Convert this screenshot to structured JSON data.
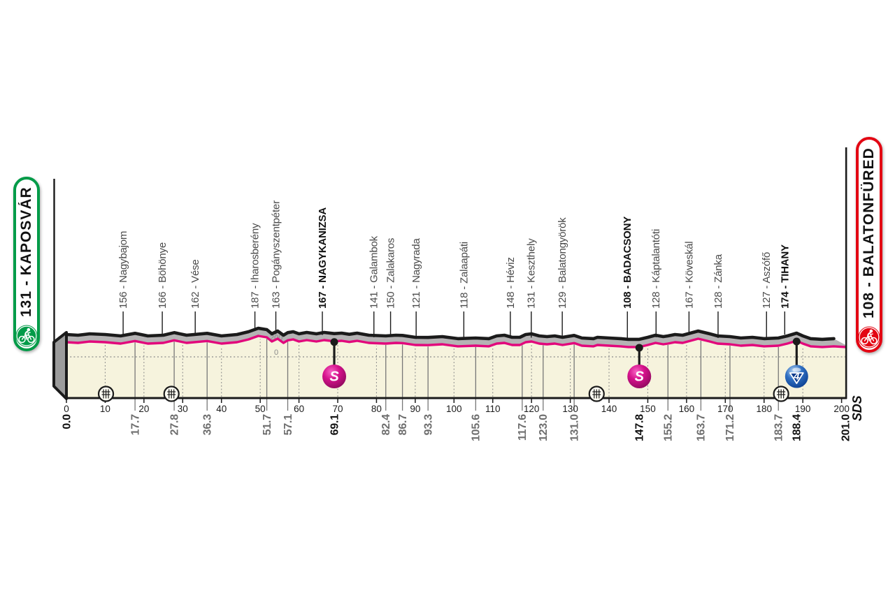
{
  "start_badge": {
    "label": "131 - KAPOSVÁR",
    "color": "#009b48"
  },
  "finish_badge": {
    "label": "108 - BALATONFÜRED",
    "color": "#e30613"
  },
  "credit": "SDS",
  "colors": {
    "profile_line": "#e2077c",
    "road_band": "#b5b3b4",
    "outline": "#1b1b1b",
    "area_fill": "#f6f3dd",
    "guide_gray": "#8a8a8a",
    "waypoint_label_gray": "#4a4a4a",
    "km_label_gray": "#6e6e6e",
    "sprint_ball": "#cc0e7e",
    "climb_ball": "#2f6fc2",
    "climb_triangle": "#0a3a8c"
  },
  "chart_data": {
    "type": "area",
    "title": "",
    "x_axis": {
      "unit": "km",
      "min": 0,
      "max": 200,
      "tick_step": 10,
      "stage_length_km": 201.0
    },
    "y_axis": {
      "unit": "m",
      "scale_labels": [
        "200",
        "0"
      ],
      "zero_line_dotted": true
    },
    "profile_km_elev": [
      [
        0,
        148
      ],
      [
        3,
        141
      ],
      [
        6,
        155
      ],
      [
        10,
        148
      ],
      [
        14,
        134
      ],
      [
        17.7,
        160
      ],
      [
        21,
        134
      ],
      [
        25,
        141
      ],
      [
        27.8,
        167
      ],
      [
        31,
        141
      ],
      [
        36.3,
        160
      ],
      [
        40,
        134
      ],
      [
        44,
        148
      ],
      [
        47,
        176
      ],
      [
        49.5,
        211
      ],
      [
        51.7,
        197
      ],
      [
        53,
        155
      ],
      [
        54.5,
        183
      ],
      [
        56,
        141
      ],
      [
        57.1,
        167
      ],
      [
        58.5,
        176
      ],
      [
        60,
        155
      ],
      [
        62,
        169
      ],
      [
        64.5,
        155
      ],
      [
        66.5,
        169
      ],
      [
        69.1,
        157
      ],
      [
        71,
        162
      ],
      [
        73,
        150
      ],
      [
        75,
        162
      ],
      [
        78,
        141
      ],
      [
        82.4,
        134
      ],
      [
        85,
        141
      ],
      [
        86.7,
        139
      ],
      [
        90,
        120
      ],
      [
        93.3,
        118
      ],
      [
        97,
        127
      ],
      [
        101,
        106
      ],
      [
        105.6,
        113
      ],
      [
        109,
        106
      ],
      [
        111,
        134
      ],
      [
        113,
        141
      ],
      [
        115,
        120
      ],
      [
        117,
        120
      ],
      [
        118.5,
        148
      ],
      [
        120,
        155
      ],
      [
        122,
        134
      ],
      [
        124,
        127
      ],
      [
        126,
        134
      ],
      [
        128,
        120
      ],
      [
        131,
        139
      ],
      [
        133,
        113
      ],
      [
        136,
        106
      ],
      [
        137,
        120
      ],
      [
        140,
        113
      ],
      [
        143,
        106
      ],
      [
        145,
        99
      ],
      [
        147.8,
        99
      ],
      [
        150,
        120
      ],
      [
        152,
        141
      ],
      [
        154,
        127
      ],
      [
        155.2,
        134
      ],
      [
        157,
        148
      ],
      [
        159,
        141
      ],
      [
        161,
        162
      ],
      [
        163,
        183
      ],
      [
        164.5,
        169
      ],
      [
        166,
        155
      ],
      [
        168,
        134
      ],
      [
        171.2,
        127
      ],
      [
        174,
        113
      ],
      [
        177,
        120
      ],
      [
        180,
        106
      ],
      [
        183.7,
        113
      ],
      [
        186,
        134
      ],
      [
        188.4,
        162
      ],
      [
        190,
        134
      ],
      [
        192,
        106
      ],
      [
        195,
        99
      ],
      [
        198,
        106
      ],
      [
        201,
        99
      ]
    ],
    "waypoints": [
      {
        "km": 0.0,
        "km_label": "0.0",
        "name": null,
        "bold": true,
        "marker": null
      },
      {
        "km": 17.7,
        "km_label": "17.7",
        "name": "156 - Nagybajom",
        "bold": false,
        "marker": null
      },
      {
        "km": 27.8,
        "km_label": "27.8",
        "name": "166 - Böhönye",
        "bold": false,
        "marker": null
      },
      {
        "km": 36.3,
        "km_label": "36.3",
        "name": "162 - Vése",
        "bold": false,
        "marker": null
      },
      {
        "km": 51.7,
        "km_label": "51.7",
        "name": "187 - Iharosberény",
        "bold": false,
        "marker": null
      },
      {
        "km": 57.1,
        "km_label": "57.1",
        "name": "163 - Pogányszentpéter",
        "bold": false,
        "marker": null
      },
      {
        "km": 69.1,
        "km_label": "69.1",
        "name": "167 - NAGYKANIZSA",
        "bold": true,
        "marker": "sprint"
      },
      {
        "km": 82.4,
        "km_label": "82.4",
        "name": "141 - Galambok",
        "bold": false,
        "marker": null
      },
      {
        "km": 86.7,
        "km_label": "86.7",
        "name": "150 - Zalakaros",
        "bold": false,
        "marker": null
      },
      {
        "km": 93.3,
        "km_label": "93.3",
        "name": "121 - Nagyrada",
        "bold": false,
        "marker": null
      },
      {
        "km": 105.6,
        "km_label": "105.6",
        "name": "118 - Zalaapáti",
        "bold": false,
        "marker": null
      },
      {
        "km": 117.6,
        "km_label": "117.6",
        "name": "148 - Héviz",
        "bold": false,
        "marker": null
      },
      {
        "km": 123.0,
        "km_label": "123.0",
        "name": "131 - Keszthely",
        "bold": false,
        "marker": null
      },
      {
        "km": 131.0,
        "km_label": "131.0",
        "name": "129 - Balatongyörök",
        "bold": false,
        "marker": null
      },
      {
        "km": 147.8,
        "km_label": "147.8",
        "name": "108 - BADACSONY",
        "bold": true,
        "marker": "sprint"
      },
      {
        "km": 155.2,
        "km_label": "155.2",
        "name": "128 - Káptalantóti",
        "bold": false,
        "marker": null
      },
      {
        "km": 163.7,
        "km_label": "163.7",
        "name": "167 - Köveskál",
        "bold": false,
        "marker": null
      },
      {
        "km": 171.2,
        "km_label": "171.2",
        "name": "128 - Zánka",
        "bold": false,
        "marker": null
      },
      {
        "km": 183.7,
        "km_label": "183.7",
        "name": "127 - Aszófő",
        "bold": false,
        "marker": null
      },
      {
        "km": 188.4,
        "km_label": "188.4",
        "name": "174 - TIHANY",
        "bold": true,
        "marker": "climb_cat4"
      },
      {
        "km": 201.0,
        "km_label": "201.0",
        "name": null,
        "bold": true,
        "marker": null
      }
    ],
    "markers": {
      "sprint_symbol": "S",
      "climb_cat4_symbol": "4"
    },
    "level_crossings_km": [
      10.2,
      27.1,
      136.8,
      184.4
    ]
  }
}
